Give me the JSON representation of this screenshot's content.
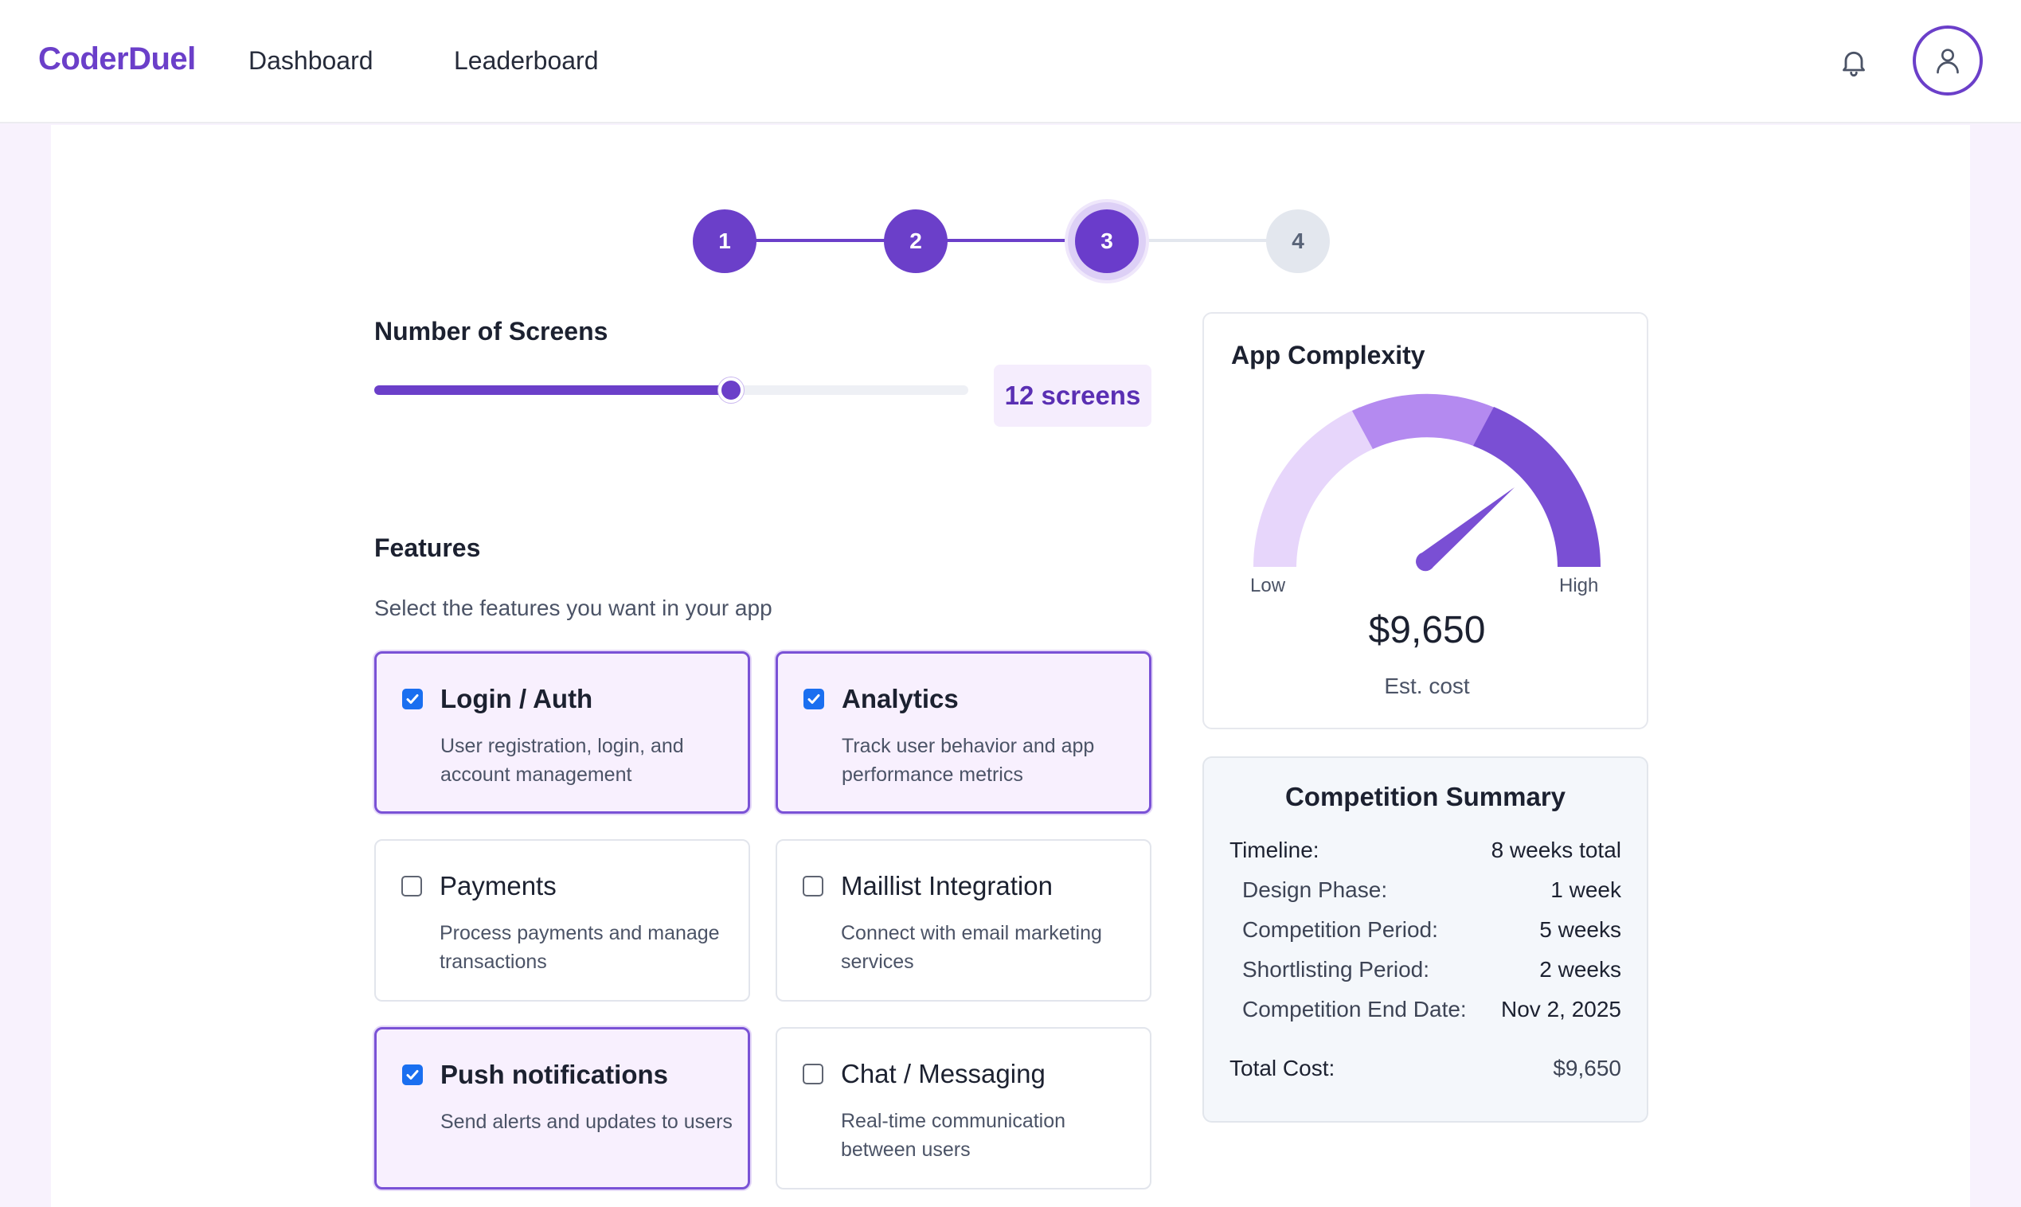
{
  "header": {
    "logo": "CoderDuel",
    "nav": [
      "Dashboard",
      "Leaderboard"
    ]
  },
  "stepper": {
    "steps": [
      "1",
      "2",
      "3",
      "4"
    ],
    "current": 3
  },
  "screens": {
    "title": "Number of Screens",
    "value_label": "12 screens",
    "slider_fraction": 0.6
  },
  "features": {
    "title": "Features",
    "subtitle": "Select the features you want in your app",
    "items": [
      {
        "title": "Login / Auth",
        "desc": "User registration, login, and account management",
        "checked": true
      },
      {
        "title": "Analytics",
        "desc": "Track user behavior and app performance metrics",
        "checked": true
      },
      {
        "title": "Payments",
        "desc": "Process payments and manage transactions",
        "checked": false
      },
      {
        "title": "Maillist Integration",
        "desc": "Connect with email marketing services",
        "checked": false
      },
      {
        "title": "Push notifications",
        "desc": "Send alerts and updates to users",
        "checked": true
      },
      {
        "title": "Chat / Messaging",
        "desc": "Real-time communication between users",
        "checked": false
      }
    ]
  },
  "complexity": {
    "title": "App Complexity",
    "low_label": "Low",
    "high_label": "High",
    "cost": "$9,650",
    "cost_label": "Est. cost",
    "colors": [
      "#e7d6fb",
      "#b48af0",
      "#7a4fd4"
    ]
  },
  "summary": {
    "title": "Competition Summary",
    "timeline_label": "Timeline:",
    "timeline_value": "8 weeks total",
    "rows": [
      {
        "label": "Design Phase:",
        "value": "1 week"
      },
      {
        "label": "Competition Period:",
        "value": "5 weeks"
      },
      {
        "label": "Shortlisting Period:",
        "value": "2 weeks"
      },
      {
        "label": "Competition End Date:",
        "value": "Nov 2, 2025"
      }
    ],
    "total_label": "Total Cost:",
    "total_value": "$9,650"
  },
  "icons": [
    "bell-icon",
    "user-icon"
  ]
}
